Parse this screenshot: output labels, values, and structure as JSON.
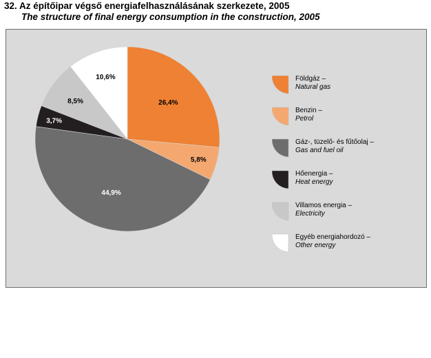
{
  "title": "32. Az építőipar végső energiafelhasználásának szerkezete, 2005",
  "subtitle": "The structure of final energy consumption in the construction, 2005",
  "chart_data": {
    "type": "pie",
    "title": "32. Az építőipar végső energiafelhasználásának szerkezete, 2005",
    "subtitle": "The structure of final energy consumption in the construction, 2005",
    "legend_position": "right",
    "slices": [
      {
        "label_hu": "Földgáz –",
        "label_en": "Natural gas",
        "value": 26.4,
        "value_label": "26,4%",
        "color": "#ee8133"
      },
      {
        "label_hu": "Benzin –",
        "label_en": "Petrol",
        "value": 5.8,
        "value_label": "5,8%",
        "color": "#f4a870"
      },
      {
        "label_hu": "Gáz-, tüzelő- és fűtőolaj –",
        "label_en": "Gas and fuel oil",
        "value": 44.9,
        "value_label": "44,9%",
        "color": "#6d6d6d"
      },
      {
        "label_hu": "Hőenergia –",
        "label_en": "Heat energy",
        "value": 3.7,
        "value_label": "3,7%",
        "color": "#231f20"
      },
      {
        "label_hu": "Villamos energia –",
        "label_en": "Electricity",
        "value": 8.5,
        "value_label": "8,5%",
        "color": "#c8c8c8"
      },
      {
        "label_hu": "Egyéb energiahordozó –",
        "label_en": "Other energy",
        "value": 10.6,
        "value_label": "10,6%",
        "color": "#ffffff"
      }
    ]
  }
}
